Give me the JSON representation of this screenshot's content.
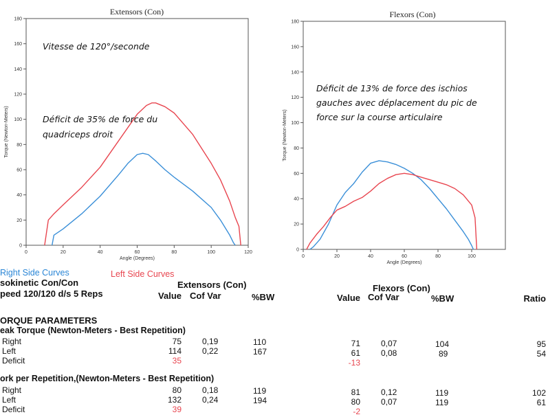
{
  "chart_data": [
    {
      "type": "line",
      "title": "Extensors (Con)",
      "xlabel": "Angle (Degrees)",
      "ylabel": "Torque (Newton-Meters)",
      "xlim": [
        0,
        120
      ],
      "ylim": [
        0,
        180
      ],
      "xticks": [
        "0",
        "20",
        "40",
        "60",
        "80",
        "100",
        "120"
      ],
      "yticks": [
        "0",
        "20",
        "40",
        "60",
        "80",
        "100",
        "120",
        "140",
        "160",
        "180"
      ],
      "annotations": [
        "Vitesse de 120°/seconde",
        "Déficit de 35% de force du",
        "quadriceps droit"
      ],
      "series": [
        {
          "name": "Right Side Curves",
          "color": "#3a8fd8",
          "x": [
            14,
            15,
            20,
            30,
            40,
            50,
            55,
            60,
            63,
            66,
            70,
            75,
            80,
            90,
            100,
            105,
            110,
            112,
            113
          ],
          "y": [
            0,
            8,
            13,
            25,
            39,
            56,
            65,
            72,
            73,
            72,
            67,
            60,
            54,
            43,
            30,
            20,
            8,
            2,
            0
          ]
        },
        {
          "name": "Left Side Curves",
          "color": "#e8454f",
          "x": [
            10,
            12,
            15,
            20,
            30,
            40,
            50,
            60,
            65,
            68,
            70,
            75,
            80,
            90,
            100,
            105,
            110,
            113,
            115,
            116
          ],
          "y": [
            0,
            20,
            25,
            32,
            46,
            62,
            83,
            104,
            111,
            113,
            113,
            110,
            105,
            88,
            65,
            52,
            35,
            22,
            15,
            0
          ]
        }
      ]
    },
    {
      "type": "line",
      "title": "Flexors (Con)",
      "xlabel": "Angle (Degrees)",
      "ylabel": "Torque (Newton-Meters)",
      "xlim": [
        0,
        120
      ],
      "ylim": [
        0,
        180
      ],
      "xticks": [
        "0",
        "20",
        "40",
        "60",
        "80",
        "100"
      ],
      "yticks": [
        "0",
        "20",
        "40",
        "60",
        "80",
        "100",
        "120",
        "140",
        "160",
        "180"
      ],
      "annotations": [
        "Déficit de 13% de force des ischios",
        "gauches avec déplacement du pic de",
        "force sur la course articulaire"
      ],
      "series": [
        {
          "name": "Right Side Curves",
          "color": "#3a8fd8",
          "x": [
            4,
            6,
            10,
            15,
            20,
            25,
            30,
            35,
            40,
            45,
            50,
            55,
            60,
            65,
            70,
            75,
            80,
            85,
            90,
            95,
            98,
            100,
            101
          ],
          "y": [
            0,
            2,
            8,
            20,
            35,
            45,
            52,
            61,
            68,
            70,
            69,
            67,
            64,
            60,
            55,
            48,
            40,
            32,
            23,
            14,
            8,
            3,
            0
          ]
        },
        {
          "name": "Left Side Curves",
          "color": "#e8454f",
          "x": [
            2,
            4,
            8,
            12,
            16,
            20,
            25,
            30,
            35,
            40,
            45,
            50,
            55,
            60,
            65,
            70,
            75,
            80,
            85,
            90,
            95,
            100,
            102,
            103
          ],
          "y": [
            0,
            5,
            12,
            18,
            25,
            31,
            34,
            38,
            41,
            46,
            52,
            56,
            59,
            60,
            59,
            57,
            55,
            53,
            51,
            48,
            43,
            35,
            25,
            0
          ]
        }
      ]
    }
  ],
  "legend": {
    "right": "Right Side Curves",
    "left": "Left Side Curves"
  },
  "table": {
    "test_line1": "sokinetic Con/Con",
    "test_line2": "peed 120/120 d/s 5 Reps",
    "ext_group": "Extensors (Con)",
    "flex_group": "Flexors (Con)",
    "col_value": "Value",
    "col_cofvar": "Cof Var",
    "col_bw": "%BW",
    "col_ratio": "Ratio",
    "section": "ORQUE PARAMETERS",
    "peak_title": "eak Torque (Newton-Meters - Best Repetition)",
    "work_title": "ork per Repetition,(Newton-Meters - Best Repetition)",
    "rows": [
      {
        "label": "Right",
        "ext_value": "75",
        "ext_cof": "0,19",
        "ext_bw": "110",
        "flex_value": "71",
        "flex_cof": "0,07",
        "flex_bw": "104",
        "ratio": "95"
      },
      {
        "label": "Left",
        "ext_value": "114",
        "ext_cof": "0,22",
        "ext_bw": "167",
        "flex_value": "61",
        "flex_cof": "0,08",
        "flex_bw": "89",
        "ratio": "54"
      },
      {
        "label": "Deficit",
        "ext_value": "35",
        "flex_value": "-13"
      },
      {
        "label": "Right",
        "ext_value": "80",
        "ext_cof": "0,18",
        "ext_bw": "119",
        "flex_value": "81",
        "flex_cof": "0,12",
        "flex_bw": "119",
        "ratio": "102"
      },
      {
        "label": "Left",
        "ext_value": "132",
        "ext_cof": "0,24",
        "ext_bw": "194",
        "flex_value": "80",
        "flex_cof": "0,07",
        "flex_bw": "119",
        "ratio": "61"
      },
      {
        "label": "Deficit",
        "ext_value": "39",
        "flex_value": "-2"
      }
    ]
  }
}
